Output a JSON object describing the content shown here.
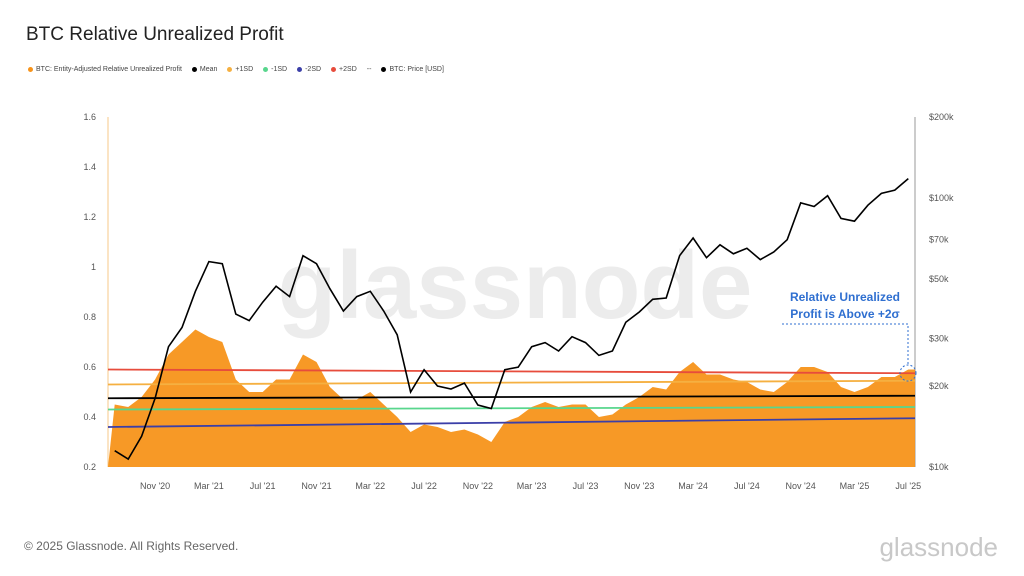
{
  "chart_data": {
    "type": "area",
    "title": "BTC Relative Unrealized Profit",
    "legend": {
      "placement": "top-left",
      "items": [
        {
          "label": "BTC: Entity-Adjusted Relative Unrealized Profit",
          "color": "#f7931a"
        },
        {
          "label": "Mean",
          "color": "#000000"
        },
        {
          "label": "+1SD",
          "color": "#f5b041"
        },
        {
          "label": "-1SD",
          "color": "#58d68d"
        },
        {
          "label": "-2SD",
          "color": "#3b3fa8"
        },
        {
          "label": "+2SD",
          "color": "#e74c3c"
        },
        {
          "label": "--",
          "color": "#888888"
        },
        {
          "label": "BTC: Price [USD]",
          "color": "#000000"
        }
      ]
    },
    "x": [
      "2020-08",
      "2020-09",
      "2020-10",
      "2020-11",
      "2020-12",
      "2021-01",
      "2021-02",
      "2021-03",
      "2021-04",
      "2021-05",
      "2021-06",
      "2021-07",
      "2021-08",
      "2021-09",
      "2021-10",
      "2021-11",
      "2021-12",
      "2022-01",
      "2022-02",
      "2022-03",
      "2022-04",
      "2022-05",
      "2022-06",
      "2022-07",
      "2022-08",
      "2022-09",
      "2022-10",
      "2022-11",
      "2022-12",
      "2023-01",
      "2023-02",
      "2023-03",
      "2023-04",
      "2023-05",
      "2023-06",
      "2023-07",
      "2023-08",
      "2023-09",
      "2023-10",
      "2023-11",
      "2023-12",
      "2024-01",
      "2024-02",
      "2024-03",
      "2024-04",
      "2024-05",
      "2024-06",
      "2024-07",
      "2024-08",
      "2024-09",
      "2024-10",
      "2024-11",
      "2024-12",
      "2025-01",
      "2025-02",
      "2025-03",
      "2025-04",
      "2025-05",
      "2025-06",
      "2025-07"
    ],
    "series": [
      {
        "name": "BTC: Entity-Adjusted Relative Unrealized Profit",
        "axis": "left",
        "style": "area",
        "color": "#f7931a",
        "values": [
          0.45,
          0.44,
          0.48,
          0.55,
          0.65,
          0.7,
          0.75,
          0.72,
          0.7,
          0.55,
          0.5,
          0.5,
          0.55,
          0.55,
          0.65,
          0.62,
          0.52,
          0.47,
          0.47,
          0.5,
          0.45,
          0.4,
          0.34,
          0.37,
          0.36,
          0.34,
          0.35,
          0.33,
          0.3,
          0.38,
          0.4,
          0.44,
          0.46,
          0.44,
          0.45,
          0.45,
          0.4,
          0.41,
          0.45,
          0.48,
          0.52,
          0.51,
          0.58,
          0.62,
          0.57,
          0.57,
          0.55,
          0.54,
          0.51,
          0.5,
          0.54,
          0.6,
          0.6,
          0.58,
          0.52,
          0.5,
          0.52,
          0.56,
          0.56,
          0.59
        ]
      },
      {
        "name": "BTC: Price [USD]",
        "axis": "right",
        "style": "line",
        "color": "#000000",
        "values": [
          11500,
          10700,
          13000,
          18000,
          28000,
          33000,
          45000,
          58000,
          57000,
          37000,
          35000,
          41000,
          47000,
          43000,
          61000,
          57000,
          46000,
          38000,
          43000,
          45000,
          38000,
          31000,
          19000,
          23000,
          20000,
          19500,
          20500,
          17000,
          16500,
          23000,
          23500,
          28000,
          29000,
          27000,
          30500,
          29000,
          26000,
          27000,
          34500,
          37700,
          42000,
          42500,
          61000,
          71000,
          60000,
          67000,
          62000,
          65000,
          59000,
          63000,
          70000,
          96000,
          93000,
          102000,
          84000,
          82000,
          94000,
          104000,
          107000,
          118000
        ]
      },
      {
        "name": "Mean",
        "axis": "left",
        "style": "line",
        "color": "#000000",
        "start": 0.475,
        "end": 0.485
      },
      {
        "name": "+1SD",
        "axis": "left",
        "style": "line",
        "color": "#f5b041",
        "start": 0.53,
        "end": 0.545
      },
      {
        "name": "-1SD",
        "axis": "left",
        "style": "line",
        "color": "#58d68d",
        "start": 0.43,
        "end": 0.44
      },
      {
        "name": "-2SD",
        "axis": "left",
        "style": "line",
        "color": "#3b3fa8",
        "start": 0.36,
        "end": 0.395
      },
      {
        "name": "+2SD",
        "axis": "left",
        "style": "line",
        "color": "#e74c3c",
        "start": 0.59,
        "end": 0.575
      }
    ],
    "y_left": {
      "range": [
        0.2,
        1.6
      ],
      "ticks": [
        "0.2",
        "0.4",
        "0.6",
        "0.8",
        "1",
        "1.2",
        "1.4",
        "1.6"
      ]
    },
    "y_right": {
      "scale": "log",
      "range": [
        10000,
        200000
      ],
      "ticks": [
        {
          "v": 10000,
          "label": "$10k"
        },
        {
          "v": 20000,
          "label": "$20k"
        },
        {
          "v": 30000,
          "label": "$30k"
        },
        {
          "v": 50000,
          "label": "$50k"
        },
        {
          "v": 70000,
          "label": "$70k"
        },
        {
          "v": 100000,
          "label": "$100k"
        },
        {
          "v": 200000,
          "label": "$200k"
        }
      ]
    },
    "x_ticks": [
      {
        "d": "2020-11",
        "label": "Nov '20"
      },
      {
        "d": "2021-03",
        "label": "Mar '21"
      },
      {
        "d": "2021-07",
        "label": "Jul '21"
      },
      {
        "d": "2021-11",
        "label": "Nov '21"
      },
      {
        "d": "2022-03",
        "label": "Mar '22"
      },
      {
        "d": "2022-07",
        "label": "Jul '22"
      },
      {
        "d": "2022-11",
        "label": "Nov '22"
      },
      {
        "d": "2023-03",
        "label": "Mar '23"
      },
      {
        "d": "2023-07",
        "label": "Jul '23"
      },
      {
        "d": "2023-11",
        "label": "Nov '23"
      },
      {
        "d": "2024-03",
        "label": "Mar '24"
      },
      {
        "d": "2024-07",
        "label": "Jul '24"
      },
      {
        "d": "2024-11",
        "label": "Nov '24"
      },
      {
        "d": "2025-03",
        "label": "Mar '25"
      },
      {
        "d": "2025-07",
        "label": "Jul '25"
      }
    ],
    "annotation": {
      "line1": "Relative Unrealized",
      "line2": "Profit is Above +2σ",
      "color": "#2f6fd0"
    },
    "grid": false
  },
  "watermark": "glassnode",
  "footer": {
    "copyright": "© 2025 Glassnode. All Rights Reserved.",
    "brand": "glassnode"
  }
}
